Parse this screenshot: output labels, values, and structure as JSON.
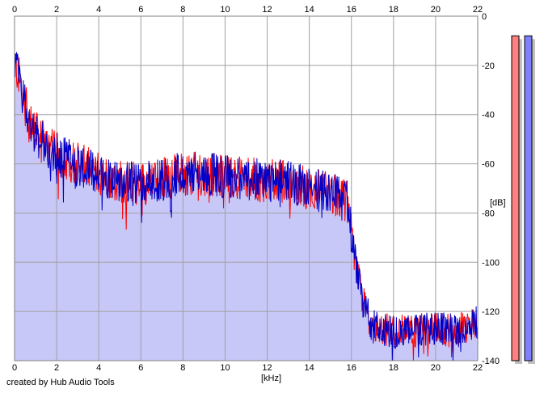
{
  "chart_data": {
    "type": "line",
    "subtype": "spectrum",
    "title": "",
    "xlabel": "[kHz]",
    "ylabel": "[dB]",
    "xlim": [
      0,
      22
    ],
    "ylim": [
      -140,
      0
    ],
    "x_ticks": [
      0,
      2,
      4,
      6,
      8,
      10,
      12,
      14,
      16,
      18,
      20,
      22
    ],
    "y_ticks": [
      0,
      -20,
      -40,
      -60,
      -80,
      -100,
      -120,
      -140
    ],
    "grid": true,
    "legend": "none",
    "fill_under": true,
    "profile_points": [
      {
        "x": 0.0,
        "y": -18
      },
      {
        "x": 0.3,
        "y": -28
      },
      {
        "x": 0.7,
        "y": -43
      },
      {
        "x": 1.2,
        "y": -50
      },
      {
        "x": 2.0,
        "y": -56
      },
      {
        "x": 3.0,
        "y": -60
      },
      {
        "x": 4.0,
        "y": -64
      },
      {
        "x": 5.0,
        "y": -67
      },
      {
        "x": 6.0,
        "y": -68
      },
      {
        "x": 7.0,
        "y": -66
      },
      {
        "x": 8.0,
        "y": -64
      },
      {
        "x": 9.0,
        "y": -64
      },
      {
        "x": 10.0,
        "y": -65
      },
      {
        "x": 11.0,
        "y": -66
      },
      {
        "x": 12.0,
        "y": -67
      },
      {
        "x": 13.0,
        "y": -67
      },
      {
        "x": 14.0,
        "y": -70
      },
      {
        "x": 15.0,
        "y": -72
      },
      {
        "x": 15.8,
        "y": -75
      },
      {
        "x": 16.1,
        "y": -95
      },
      {
        "x": 16.5,
        "y": -115
      },
      {
        "x": 17.0,
        "y": -126
      },
      {
        "x": 18.0,
        "y": -128
      },
      {
        "x": 19.0,
        "y": -128
      },
      {
        "x": 20.0,
        "y": -127
      },
      {
        "x": 21.0,
        "y": -128
      },
      {
        "x": 22.0,
        "y": -124
      }
    ],
    "series": [
      {
        "color": "#ff0000"
      },
      {
        "color": "#0000c8"
      }
    ],
    "fill_color": "#c8c8f8",
    "grid_color": "#a0a0a0",
    "level_meters": [
      {
        "color": "#ff8080",
        "shadow": "#c0c0c0",
        "level_db": -8
      },
      {
        "color": "#8080ff",
        "shadow": "#c0c0c0",
        "level_db": -8
      }
    ]
  },
  "footer": {
    "credit": "created by Hub Audio Tools"
  }
}
